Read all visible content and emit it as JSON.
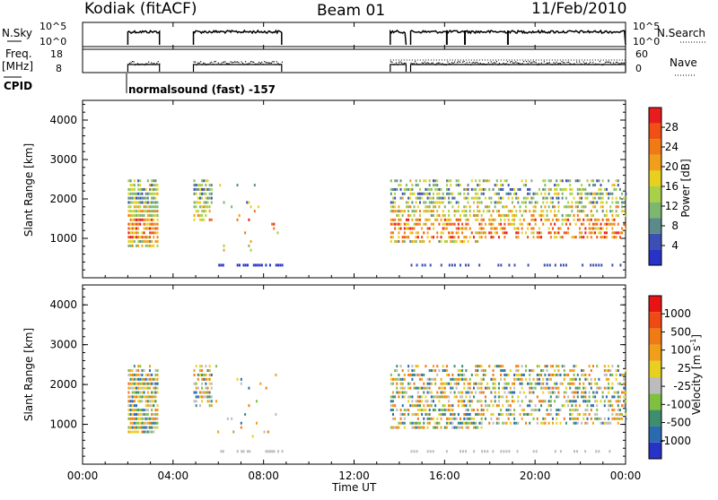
{
  "header": {
    "station": "Kodiak (fitACF)",
    "beam": "Beam 01",
    "date": "11/Feb/2010"
  },
  "noise_panel": {
    "left_label": "N.Sky",
    "right_label": "N.Search",
    "left_ticks": [
      "10^5",
      "10^0"
    ],
    "right_ticks": [
      "10^5",
      "10^0"
    ]
  },
  "freq_panel": {
    "left_label_1": "Freq.",
    "left_label_2": "[MHz]",
    "right_label": "Nave",
    "left_ticks": [
      "18",
      "8"
    ],
    "right_ticks": [
      "60",
      "0"
    ]
  },
  "cpid": {
    "label": "CPID",
    "annotation": "normalsound (fast) -157"
  },
  "chart_data": [
    {
      "type": "heatmap",
      "name": "power",
      "ylabel": "Slant Range [km]",
      "ylim": [
        0,
        4500
      ],
      "yticks": [
        "1000",
        "2000",
        "3000",
        "4000"
      ],
      "colorbar": {
        "label": "Power [dB]",
        "ticks": [
          "28",
          "24",
          "20",
          "16",
          "12",
          "8",
          "4"
        ],
        "colors": [
          "#2832c8",
          "#3c4fb4",
          "#5a8a8a",
          "#7db66e",
          "#a8d048",
          "#e8d01e",
          "#f0a018",
          "#f07a14",
          "#f05014",
          "#e81c1c"
        ]
      }
    },
    {
      "type": "heatmap",
      "name": "velocity",
      "ylabel": "Slant Range [km]",
      "ylim": [
        0,
        4500
      ],
      "yticks": [
        "1000",
        "2000",
        "3000",
        "4000"
      ],
      "colorbar": {
        "label_1": "Velocity [m s",
        "label_sup": "-1",
        "label_2": "]",
        "ticks": [
          "1000",
          "500",
          "100",
          "25",
          "-25",
          "-100",
          "-500",
          "-1000"
        ],
        "colors": [
          "#2832c8",
          "#2a6ab0",
          "#3e8e6e",
          "#80c040",
          "#bcbcbc",
          "#e8d020",
          "#f0a018",
          "#f07a14",
          "#f04a14",
          "#e81414"
        ]
      }
    }
  ],
  "time_axis": {
    "label": "Time UT",
    "ticks": [
      "00:00",
      "04:00",
      "08:00",
      "12:00",
      "16:00",
      "20:00",
      "00:00"
    ]
  }
}
